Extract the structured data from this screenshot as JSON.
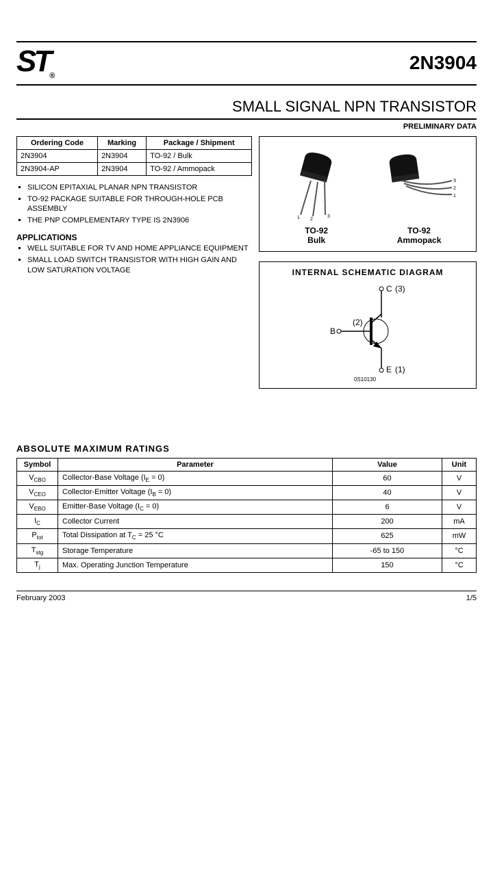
{
  "header": {
    "logo_text": "ST",
    "reg_mark": "®",
    "part_number": "2N3904"
  },
  "title_block": {
    "title": "SMALL SIGNAL NPN TRANSISTOR",
    "preliminary": "PRELIMINARY DATA"
  },
  "ordering_table": {
    "columns": [
      "Ordering Code",
      "Marking",
      "Package / Shipment"
    ],
    "rows": [
      [
        "2N3904",
        "2N3904",
        "TO-92 / Bulk"
      ],
      [
        "2N3904-AP",
        "2N3904",
        "TO-92   / Ammopack"
      ]
    ]
  },
  "features": [
    "SILICON EPITAXIAL PLANAR NPN TRANSISTOR",
    "TO-92 PACKAGE SUITABLE FOR THROUGH-HOLE PCB ASSEMBLY",
    "THE PNP COMPLEMENTARY TYPE IS 2N3906"
  ],
  "applications_heading": "APPLICATIONS",
  "applications": [
    "WELL SUITABLE FOR TV AND HOME APPLIANCE EQUIPMENT",
    "SMALL LOAD SWITCH TRANSISTOR WITH HIGH GAIN AND LOW SATURATION VOLTAGE"
  ],
  "packages": {
    "items": [
      {
        "name": "TO-92",
        "variant": "Bulk",
        "leads": [
          "1",
          "2",
          "3"
        ]
      },
      {
        "name": "TO-92",
        "variant": "Ammopack",
        "leads": [
          "1",
          "2",
          "3"
        ]
      }
    ]
  },
  "schematic": {
    "title": "INTERNAL  SCHEMATIC  DIAGRAM",
    "pins": {
      "c": "C",
      "c_num": "(3)",
      "b": "B",
      "b_num": "(2)",
      "e": "E",
      "e_num": "(1)"
    },
    "code": "0S10130"
  },
  "ratings": {
    "title": "ABSOLUTE  MAXIMUM  RATINGS",
    "columns": [
      "Symbol",
      "Parameter",
      "Value",
      "Unit"
    ],
    "rows": [
      {
        "sym_html": "V<sub>CBO</sub>",
        "param_html": "Collector-Base Voltage (I<sub>E</sub> = 0)",
        "value": "60",
        "unit": "V"
      },
      {
        "sym_html": "V<sub>CEO</sub>",
        "param_html": "Collector-Emitter Voltage (I<sub>B</sub> = 0)",
        "value": "40",
        "unit": "V"
      },
      {
        "sym_html": "V<sub>EBO</sub>",
        "param_html": "Emitter-Base Voltage (I<sub>C</sub> = 0)",
        "value": "6",
        "unit": "V"
      },
      {
        "sym_html": "I<sub>C</sub>",
        "param_html": "Collector Current",
        "value": "200",
        "unit": "mA"
      },
      {
        "sym_html": "P<sub>tot</sub>",
        "param_html": "Total Dissipation at T<sub>C</sub> = 25 °C",
        "value": "625",
        "unit": "mW"
      },
      {
        "sym_html": "T<sub>stg</sub>",
        "param_html": "Storage Temperature",
        "value": "-65 to 150",
        "unit": "°C"
      },
      {
        "sym_html": "T<sub>j</sub>",
        "param_html": "Max. Operating Junction Temperature",
        "value": "150",
        "unit": "°C"
      }
    ]
  },
  "footer": {
    "date": "February 2003",
    "page": "1/5"
  },
  "style": {
    "body_font": "Arial",
    "body_color": "#000000",
    "background": "#ffffff",
    "rule_color": "#000000",
    "table_border": "#000000",
    "logo_fontsize": 44,
    "partno_fontsize": 28,
    "title_fontsize": 22
  }
}
